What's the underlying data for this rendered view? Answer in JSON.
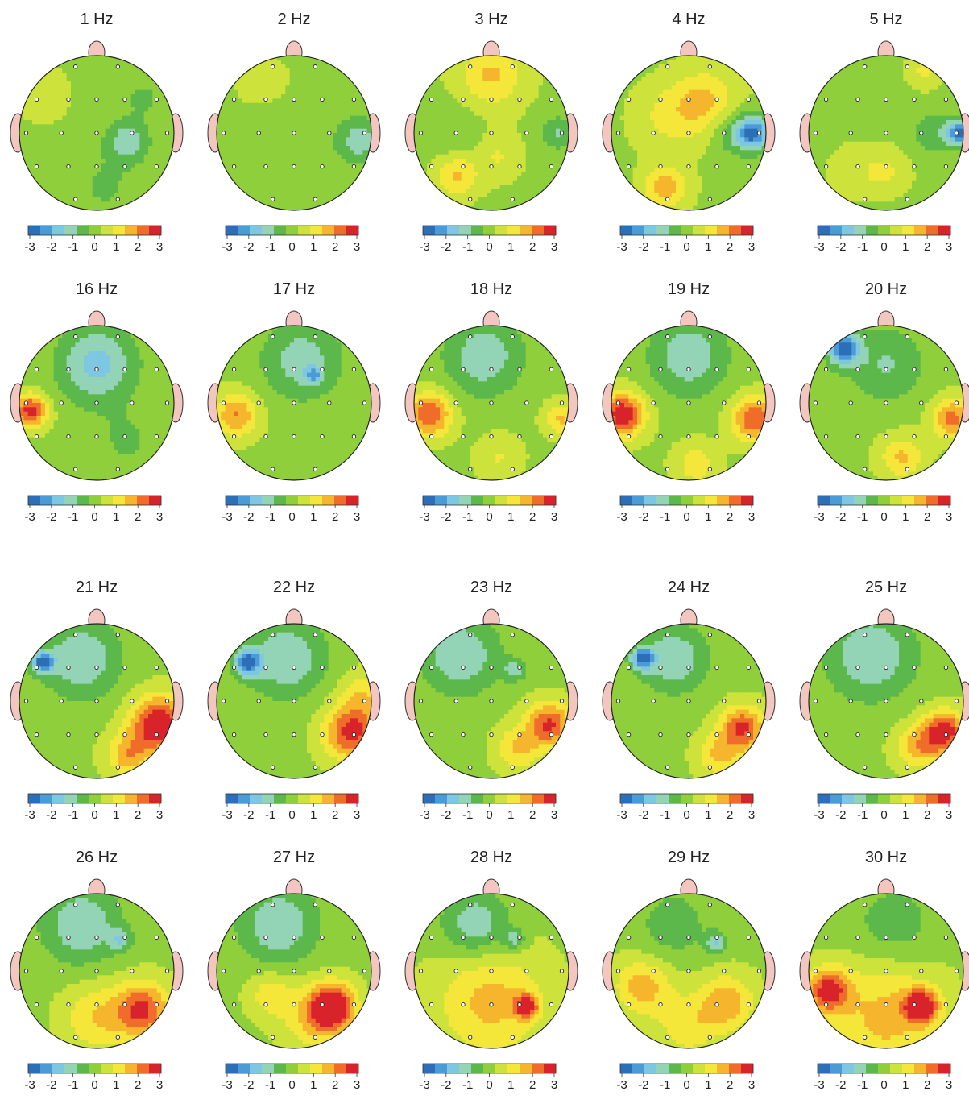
{
  "chart_data": {
    "type": "heatmap",
    "subtype": "topographic scalp maps",
    "colorbar": {
      "range": [
        -3,
        3
      ],
      "ticks": [
        "-3",
        "-2",
        "-1",
        "0",
        "1",
        "2",
        "3"
      ],
      "colors": [
        "#2c6fb6",
        "#4a9bd6",
        "#7ec7e3",
        "#93d3b6",
        "#5cb84a",
        "#8fcf3c",
        "#cde23a",
        "#f5e63a",
        "#f5b52c",
        "#ef6c2a",
        "#d9232a"
      ]
    },
    "maps": [
      {
        "title": "1 Hz",
        "blobs": [
          [
            0.6,
            -0.45,
            -0.6,
            0.15
          ],
          [
            0.4,
            0.1,
            -1.3,
            0.2
          ],
          [
            -0.7,
            -0.5,
            0.4,
            0.25
          ],
          [
            0.1,
            0.7,
            -0.5,
            0.3
          ]
        ]
      },
      {
        "title": "2 Hz",
        "blobs": [
          [
            0.85,
            0.1,
            -1.3,
            0.2
          ],
          [
            -0.4,
            -0.65,
            0.4,
            0.25
          ],
          [
            0.0,
            0.1,
            -0.3,
            0.4
          ]
        ]
      },
      {
        "title": "3 Hz",
        "blobs": [
          [
            0.0,
            -0.75,
            1.3,
            0.3
          ],
          [
            -0.45,
            0.55,
            1.3,
            0.2
          ],
          [
            0.85,
            0.0,
            -1.0,
            0.15
          ],
          [
            0.1,
            0.3,
            0.7,
            0.2
          ],
          [
            -0.5,
            0.0,
            -0.4,
            0.25
          ]
        ]
      },
      {
        "title": "4 Hz",
        "blobs": [
          [
            0.85,
            0.0,
            -2.6,
            0.15
          ],
          [
            0.6,
            0.0,
            -1.0,
            0.2
          ],
          [
            0.2,
            -0.4,
            1.3,
            0.3
          ],
          [
            -0.3,
            0.7,
            1.5,
            0.2
          ],
          [
            -0.3,
            -0.2,
            0.7,
            0.3
          ]
        ]
      },
      {
        "title": "5 Hz",
        "blobs": [
          [
            0.95,
            0.0,
            -2.7,
            0.12
          ],
          [
            0.6,
            0.0,
            -0.8,
            0.2
          ],
          [
            0.5,
            -0.8,
            0.8,
            0.15
          ],
          [
            0.0,
            0.5,
            0.7,
            0.2
          ],
          [
            -0.4,
            0.5,
            0.4,
            0.25
          ]
        ]
      },
      {
        "title": "16 Hz",
        "blobs": [
          [
            -0.85,
            0.1,
            2.6,
            0.15
          ],
          [
            0.0,
            -0.5,
            -1.7,
            0.35
          ],
          [
            0.4,
            0.5,
            -0.5,
            0.3
          ]
        ]
      },
      {
        "title": "17 Hz",
        "blobs": [
          [
            -0.75,
            0.15,
            1.8,
            0.2
          ],
          [
            0.1,
            -0.55,
            -1.3,
            0.35
          ],
          [
            0.25,
            -0.35,
            -1.5,
            0.08
          ]
        ]
      },
      {
        "title": "18 Hz",
        "blobs": [
          [
            -0.8,
            0.15,
            2.3,
            0.2
          ],
          [
            -0.1,
            -0.6,
            -1.4,
            0.35
          ],
          [
            0.9,
            0.2,
            1.3,
            0.15
          ],
          [
            0.1,
            0.7,
            0.7,
            0.2
          ]
        ]
      },
      {
        "title": "19 Hz",
        "blobs": [
          [
            -0.85,
            0.15,
            2.8,
            0.2
          ],
          [
            0.85,
            0.2,
            2.3,
            0.2
          ],
          [
            0.0,
            -0.6,
            -1.4,
            0.35
          ],
          [
            0.1,
            0.8,
            1.0,
            0.2
          ]
        ]
      },
      {
        "title": "20 Hz",
        "blobs": [
          [
            -0.55,
            -0.7,
            -2.8,
            0.15
          ],
          [
            0.0,
            -0.5,
            -1.0,
            0.35
          ],
          [
            0.85,
            0.2,
            2.0,
            0.18
          ],
          [
            0.2,
            0.7,
            1.3,
            0.2
          ]
        ]
      },
      {
        "title": "21 Hz",
        "blobs": [
          [
            -0.7,
            -0.5,
            -2.6,
            0.1
          ],
          [
            -0.2,
            -0.55,
            -1.5,
            0.35
          ],
          [
            0.8,
            0.3,
            3.0,
            0.25
          ],
          [
            0.4,
            0.7,
            1.5,
            0.2
          ]
        ]
      },
      {
        "title": "22 Hz",
        "blobs": [
          [
            -0.6,
            -0.5,
            -2.8,
            0.12
          ],
          [
            -0.1,
            -0.55,
            -1.5,
            0.35
          ],
          [
            0.75,
            0.4,
            2.6,
            0.25
          ],
          [
            0.9,
            -0.1,
            1.0,
            0.2
          ]
        ]
      },
      {
        "title": "23 Hz",
        "blobs": [
          [
            -0.4,
            -0.6,
            -1.5,
            0.35
          ],
          [
            0.75,
            0.3,
            2.4,
            0.2
          ],
          [
            0.35,
            0.6,
            1.3,
            0.2
          ],
          [
            0.3,
            -0.4,
            -1.2,
            0.1
          ]
        ]
      },
      {
        "title": "24 Hz",
        "blobs": [
          [
            -0.6,
            -0.55,
            -2.6,
            0.1
          ],
          [
            -0.2,
            -0.55,
            -1.5,
            0.3
          ],
          [
            0.7,
            0.35,
            2.4,
            0.2
          ],
          [
            0.4,
            0.7,
            1.3,
            0.2
          ]
        ]
      },
      {
        "title": "25 Hz",
        "blobs": [
          [
            -0.2,
            -0.6,
            -1.5,
            0.4
          ],
          [
            0.75,
            0.4,
            2.7,
            0.2
          ],
          [
            0.4,
            0.6,
            1.4,
            0.2
          ]
        ]
      },
      {
        "title": "26 Hz",
        "blobs": [
          [
            -0.2,
            -0.6,
            -1.5,
            0.35
          ],
          [
            0.6,
            0.5,
            2.4,
            0.25
          ],
          [
            0.3,
            -0.4,
            -1.2,
            0.1
          ],
          [
            0.0,
            0.6,
            1.2,
            0.3
          ]
        ]
      },
      {
        "title": "27 Hz",
        "blobs": [
          [
            -0.2,
            -0.6,
            -1.5,
            0.35
          ],
          [
            0.5,
            0.45,
            2.7,
            0.2
          ],
          [
            0.3,
            0.6,
            1.4,
            0.3
          ],
          [
            -0.3,
            0.3,
            1.0,
            0.2
          ]
        ]
      },
      {
        "title": "28 Hz",
        "blobs": [
          [
            -0.2,
            -0.6,
            -1.5,
            0.3
          ],
          [
            0.3,
            -0.4,
            -1.2,
            0.1
          ],
          [
            0.45,
            0.45,
            2.7,
            0.1
          ],
          [
            0.0,
            0.4,
            1.4,
            0.5
          ]
        ]
      },
      {
        "title": "29 Hz",
        "blobs": [
          [
            0.35,
            -0.35,
            -1.5,
            0.1
          ],
          [
            -0.2,
            -0.6,
            -0.8,
            0.3
          ],
          [
            -0.6,
            0.2,
            1.5,
            0.25
          ],
          [
            0.5,
            0.4,
            1.5,
            0.25
          ],
          [
            0.0,
            0.7,
            1.0,
            0.3
          ]
        ]
      },
      {
        "title": "30 Hz",
        "blobs": [
          [
            -0.75,
            0.25,
            2.5,
            0.2
          ],
          [
            0.45,
            0.45,
            2.8,
            0.15
          ],
          [
            0.1,
            -0.6,
            -0.8,
            0.35
          ],
          [
            0.0,
            0.6,
            1.4,
            0.5
          ]
        ]
      }
    ]
  }
}
